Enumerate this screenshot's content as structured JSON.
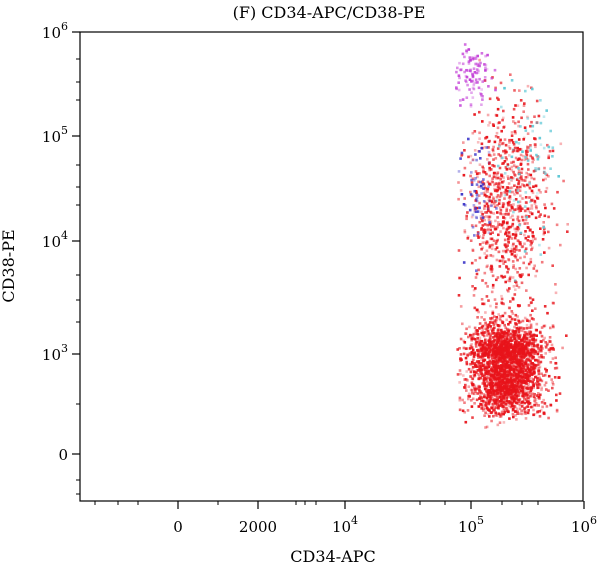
{
  "chart_data": {
    "type": "scatter",
    "title": "(F) CD34-APC/CD38-PE",
    "xlabel": "CD34-APC",
    "ylabel": "CD38-PE",
    "x_scale": "biexponential",
    "y_scale": "biexponential",
    "x_ticks": [
      {
        "value": 0,
        "label": "0"
      },
      {
        "value": 2000,
        "label": "2000"
      },
      {
        "value": 10000,
        "base": "10",
        "exp": "4"
      },
      {
        "value": 100000,
        "base": "10",
        "exp": "5"
      },
      {
        "value": 1000000,
        "base": "10",
        "exp": "6"
      }
    ],
    "y_ticks": [
      {
        "value": 0,
        "label": "0"
      },
      {
        "value": 1000,
        "base": "10",
        "exp": "3"
      },
      {
        "value": 10000,
        "base": "10",
        "exp": "4"
      },
      {
        "value": 100000,
        "base": "10",
        "exp": "5"
      },
      {
        "value": 1000000,
        "base": "10",
        "exp": "6"
      }
    ],
    "grid": false,
    "legend": "none",
    "clusters": [
      {
        "x_center": 200000,
        "y_center": 900,
        "x_spread": 0.33,
        "y_spread": 0.3,
        "count": 2600,
        "color": "#e8141b"
      },
      {
        "x_center": 200000,
        "y_center": 20000,
        "x_spread": 0.38,
        "y_spread": 0.95,
        "count": 900,
        "color": "#e8141b"
      },
      {
        "x_center": 100000,
        "y_center": 400000,
        "x_spread": 0.16,
        "y_spread": 0.32,
        "count": 110,
        "color": "#c23cd6"
      },
      {
        "x_center": 110000,
        "y_center": 30000,
        "x_spread": 0.14,
        "y_spread": 0.55,
        "count": 60,
        "color": "#3a34c8"
      },
      {
        "x_center": 300000,
        "y_center": 60000,
        "x_spread": 0.25,
        "y_spread": 0.8,
        "count": 70,
        "color": "#5fc8d6"
      }
    ]
  }
}
